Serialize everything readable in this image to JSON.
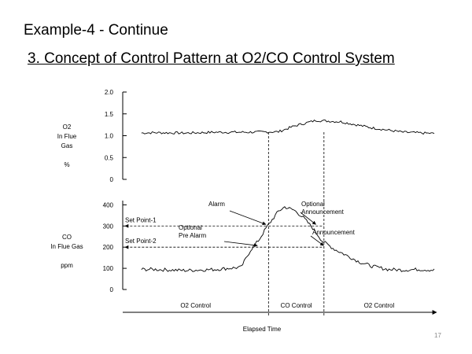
{
  "slide": {
    "header": "Example-4 - Continue",
    "subtitle": "3. Concept of Control Pattern at O2/CO Control System",
    "page_number": "17"
  },
  "chart_data": [
    {
      "type": "line",
      "name": "o2",
      "ylabel_lines": [
        "O2",
        "In  Flue",
        "Gas",
        "",
        "%"
      ],
      "ylim": [
        0,
        2.0
      ],
      "yticks": [
        "2.0",
        "1.5",
        "1.0",
        "0.5",
        "0"
      ],
      "ytick_values": [
        2.0,
        1.5,
        1.0,
        0.5,
        0
      ],
      "x_range": [
        0,
        100
      ],
      "series": [
        {
          "name": "O2",
          "x": [
            0,
            10,
            20,
            30,
            40,
            50,
            55,
            62,
            70,
            80,
            90,
            100
          ],
          "y": [
            1.05,
            1.07,
            1.06,
            1.08,
            1.08,
            1.09,
            1.22,
            1.35,
            1.32,
            1.18,
            1.08,
            1.05
          ]
        }
      ]
    },
    {
      "type": "line",
      "name": "co",
      "ylabel_lines": [
        "CO",
        "In  Flue  Gas",
        "",
        "ppm"
      ],
      "ylim": [
        0,
        420
      ],
      "yticks": [
        "400",
        "300",
        "200",
        "100",
        "0"
      ],
      "ytick_values": [
        400,
        300,
        200,
        100,
        0
      ],
      "x_range": [
        0,
        100
      ],
      "series": [
        {
          "name": "CO",
          "x": [
            0,
            10,
            20,
            30,
            38,
            41,
            44,
            46,
            47.5,
            50,
            52,
            55,
            58,
            61,
            64,
            68,
            72,
            76,
            80,
            85,
            90,
            95,
            100
          ],
          "y": [
            95,
            95,
            90,
            95,
            105,
            185,
            240,
            290,
            320,
            370,
            390,
            375,
            340,
            290,
            230,
            190,
            160,
            130,
            110,
            95,
            92,
            95,
            92
          ]
        }
      ],
      "setpoints": [
        {
          "label": "Set Point-1",
          "value": 300
        },
        {
          "label": "Set Point-2",
          "value": 200
        }
      ],
      "annotations": [
        {
          "lines": [
            "Alarm"
          ],
          "x": 46.2,
          "y": 300
        },
        {
          "lines": [
            "Optional",
            "Pre Alarm"
          ],
          "x": 43.5,
          "y": 200
        },
        {
          "lines": [
            "Optional",
            "Announcement"
          ],
          "x": 61.5,
          "y": 300
        },
        {
          "lines": [
            "Announcement"
          ],
          "x": 64,
          "y": 200
        }
      ]
    }
  ],
  "control_bar": {
    "segments": [
      "O2 Control",
      "CO Control",
      "O2 Control"
    ],
    "boundaries_x": [
      46.8,
      64.6
    ]
  },
  "xlabel": "Elapsed Time"
}
